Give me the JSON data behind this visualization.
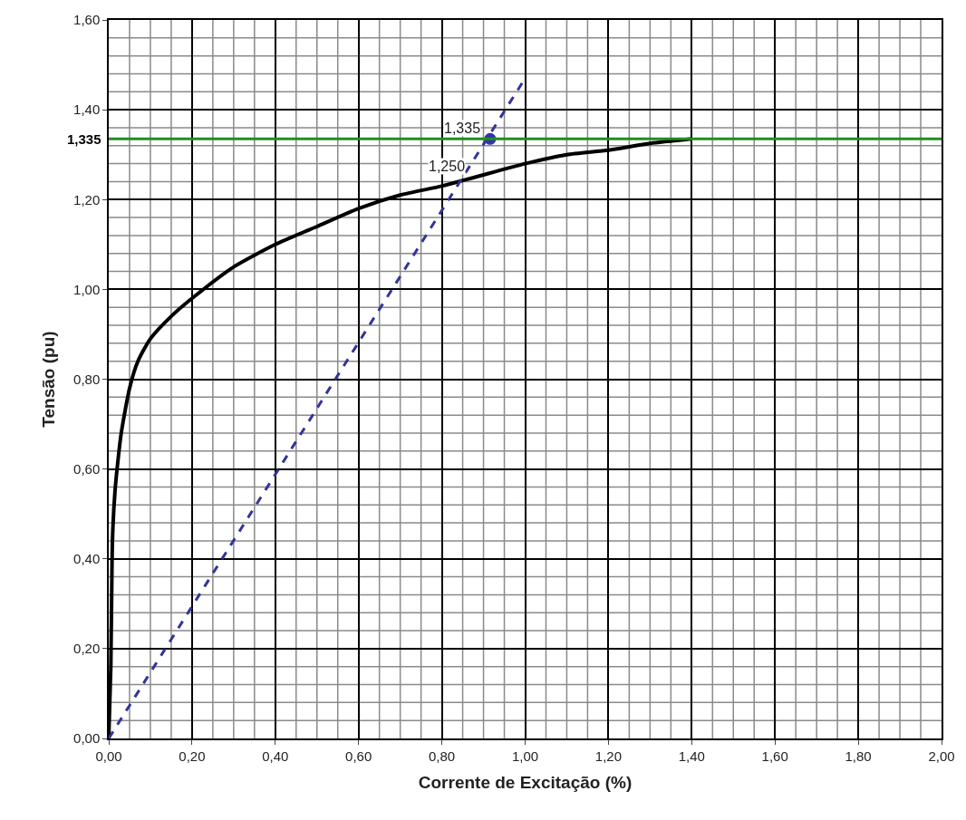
{
  "chart_data": {
    "type": "line",
    "xlabel": "Corrente de Excitação (%)",
    "ylabel": "Tensão (pu)",
    "xlim": [
      0,
      2
    ],
    "ylim": [
      0,
      1.6
    ],
    "xticks": [
      {
        "value": 0,
        "label": "0,00"
      },
      {
        "value": 0.05,
        "label": null
      },
      {
        "value": 0.1,
        "label": null
      },
      {
        "value": 0.15,
        "label": null
      },
      {
        "value": 0.2,
        "label": "0,20"
      },
      {
        "value": 0.25,
        "label": null
      },
      {
        "value": 0.3,
        "label": null
      },
      {
        "value": 0.35,
        "label": null
      },
      {
        "value": 0.4,
        "label": "0,40"
      },
      {
        "value": 0.45,
        "label": null
      },
      {
        "value": 0.5,
        "label": null
      },
      {
        "value": 0.55,
        "label": null
      },
      {
        "value": 0.6,
        "label": "0,60"
      },
      {
        "value": 0.65,
        "label": null
      },
      {
        "value": 0.7,
        "label": null
      },
      {
        "value": 0.75,
        "label": null
      },
      {
        "value": 0.8,
        "label": "0,80"
      },
      {
        "value": 0.85,
        "label": null
      },
      {
        "value": 0.9,
        "label": null
      },
      {
        "value": 0.95,
        "label": null
      },
      {
        "value": 1.0,
        "label": "1,00"
      },
      {
        "value": 1.05,
        "label": null
      },
      {
        "value": 1.1,
        "label": null
      },
      {
        "value": 1.15,
        "label": null
      },
      {
        "value": 1.2,
        "label": "1,20"
      },
      {
        "value": 1.25,
        "label": null
      },
      {
        "value": 1.3,
        "label": null
      },
      {
        "value": 1.35,
        "label": null
      },
      {
        "value": 1.4,
        "label": "1,40"
      },
      {
        "value": 1.45,
        "label": null
      },
      {
        "value": 1.5,
        "label": null
      },
      {
        "value": 1.55,
        "label": null
      },
      {
        "value": 1.6,
        "label": "1,60"
      },
      {
        "value": 1.65,
        "label": null
      },
      {
        "value": 1.7,
        "label": null
      },
      {
        "value": 1.75,
        "label": null
      },
      {
        "value": 1.8,
        "label": "1,80"
      },
      {
        "value": 1.85,
        "label": null
      },
      {
        "value": 1.9,
        "label": null
      },
      {
        "value": 1.95,
        "label": null
      },
      {
        "value": 2.0,
        "label": "2,00"
      }
    ],
    "yticks": [
      {
        "value": 0,
        "label": "0,00"
      },
      {
        "value": 0.04,
        "label": null
      },
      {
        "value": 0.08,
        "label": null
      },
      {
        "value": 0.12,
        "label": null
      },
      {
        "value": 0.16,
        "label": null
      },
      {
        "value": 0.2,
        "label": "0,20"
      },
      {
        "value": 0.24,
        "label": null
      },
      {
        "value": 0.28,
        "label": null
      },
      {
        "value": 0.32,
        "label": null
      },
      {
        "value": 0.36,
        "label": null
      },
      {
        "value": 0.4,
        "label": "0,40"
      },
      {
        "value": 0.44,
        "label": null
      },
      {
        "value": 0.48,
        "label": null
      },
      {
        "value": 0.52,
        "label": null
      },
      {
        "value": 0.56,
        "label": null
      },
      {
        "value": 0.6,
        "label": "0,60"
      },
      {
        "value": 0.64,
        "label": null
      },
      {
        "value": 0.68,
        "label": null
      },
      {
        "value": 0.72,
        "label": null
      },
      {
        "value": 0.76,
        "label": null
      },
      {
        "value": 0.8,
        "label": "0,80"
      },
      {
        "value": 0.84,
        "label": null
      },
      {
        "value": 0.88,
        "label": null
      },
      {
        "value": 0.92,
        "label": null
      },
      {
        "value": 0.96,
        "label": null
      },
      {
        "value": 1.0,
        "label": "1,00"
      },
      {
        "value": 1.04,
        "label": null
      },
      {
        "value": 1.08,
        "label": null
      },
      {
        "value": 1.12,
        "label": null
      },
      {
        "value": 1.16,
        "label": null
      },
      {
        "value": 1.2,
        "label": "1,20"
      },
      {
        "value": 1.24,
        "label": null
      },
      {
        "value": 1.28,
        "label": null
      },
      {
        "value": 1.32,
        "label": null
      },
      {
        "value": 1.36,
        "label": null
      },
      {
        "value": 1.4,
        "label": "1,40"
      },
      {
        "value": 1.44,
        "label": null
      },
      {
        "value": 1.48,
        "label": null
      },
      {
        "value": 1.52,
        "label": null
      },
      {
        "value": 1.56,
        "label": null
      },
      {
        "value": 1.6,
        "label": "1,60"
      }
    ],
    "grid": true,
    "series": [
      {
        "color": "#000000",
        "line_style": "solid",
        "marker": "none",
        "x": [
          0,
          0.005,
          0.008,
          0.01,
          0.015,
          0.02,
          0.03,
          0.05,
          0.07,
          0.1,
          0.15,
          0.2,
          0.3,
          0.4,
          0.5,
          0.6,
          0.7,
          0.8,
          0.88,
          1.0,
          1.1,
          1.2,
          1.3,
          1.4
        ],
        "values": [
          0,
          0.16,
          0.4,
          0.47,
          0.55,
          0.6,
          0.68,
          0.78,
          0.84,
          0.89,
          0.94,
          0.98,
          1.05,
          1.1,
          1.14,
          1.18,
          1.21,
          1.23,
          1.25,
          1.28,
          1.3,
          1.31,
          1.325,
          1.335
        ]
      },
      {
        "color": "#33339a",
        "line_style": "dashed",
        "marker": "none",
        "x": [
          0,
          1.0
        ],
        "values": [
          0,
          1.47
        ]
      },
      {
        "color": "#3333aa",
        "type": "scatter",
        "marker": "circle",
        "x": [
          0.916
        ],
        "values": [
          1.335
        ]
      }
    ],
    "ref_lines": [
      {
        "axis": "y",
        "value": 1.335,
        "label": "1,335",
        "color": "#1f8f1f"
      }
    ],
    "annotations": [
      {
        "text": "1,335",
        "x": 0.916,
        "y": 1.335
      },
      {
        "text": "1,250",
        "x": 0.88,
        "y": 1.25
      }
    ]
  }
}
